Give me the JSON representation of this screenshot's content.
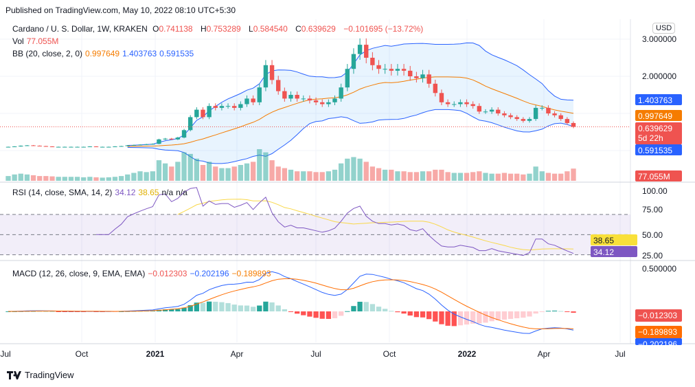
{
  "published": "Published on TradingView.com, May 10, 2022 08:10 UTC+5:30",
  "legend": {
    "symbol": "Cardano / U. S. Dollar, 1W, KRAKEN",
    "o_label": "O",
    "o": "0.741138",
    "h_label": "H",
    "h": "0.753289",
    "l_label": "L",
    "l": "0.584540",
    "c_label": "C",
    "c": "0.639629",
    "change": "−0.101695 (−13.72%)",
    "vol_label": "Vol",
    "vol": "77.055M",
    "bb_label": "BB (20, close, 2, 0)",
    "bb_basis": "0.997649",
    "bb_upper": "1.403763",
    "bb_lower": "0.591535",
    "rsi_label": "RSI (14, close, SMA, 14, 2)",
    "rsi": "34.12",
    "rsi_ma": "38.65",
    "rsi_na1": "n/a",
    "rsi_na2": "n/a",
    "macd_label": "MACD (12, 26, close, 9, EMA, EMA)",
    "macd_hist": "−0.012303",
    "macd": "−0.202196",
    "macd_signal": "−0.189893"
  },
  "currency": "USD",
  "price_scale": [
    "3.000000",
    "2.000000"
  ],
  "rsi_scale": [
    "100.00",
    "75.00",
    "50.00",
    "25.00"
  ],
  "macd_scale": [
    "0.500000"
  ],
  "badges": {
    "bb_upper": "1.403763",
    "bb_basis": "0.997649",
    "last": "0.639629",
    "countdown": "5d 22h",
    "bb_lower": "0.591535",
    "vol": "77.055M",
    "rsi_ma": "38.65",
    "rsi": "34.12",
    "macd_hist": "−0.012303",
    "macd_signal": "−0.189893",
    "macd": "−0.202196"
  },
  "time_axis": [
    "Jul",
    "Oct",
    "2021",
    "Apr",
    "Jul",
    "Oct",
    "2022",
    "Apr",
    "Jul"
  ],
  "footer": "TradingView",
  "colors": {
    "up": "#26a69a",
    "down": "#ef5350",
    "bb_basis": "#f57c00",
    "bb_band": "#2962ff",
    "rsi": "#7e57c2",
    "rsi_ma": "#f9d849",
    "macd": "#2962ff",
    "signal": "#ff6d00"
  },
  "chart_data": {
    "type": "candlestick",
    "closes": [
      0.1,
      0.11,
      0.13,
      0.14,
      0.13,
      0.12,
      0.11,
      0.1,
      0.1,
      0.1,
      0.1,
      0.1,
      0.1,
      0.11,
      0.1,
      0.1,
      0.1,
      0.11,
      0.12,
      0.14,
      0.15,
      0.16,
      0.17,
      0.18,
      0.3,
      0.32,
      0.3,
      0.35,
      0.55,
      0.9,
      1.1,
      0.9,
      1.2,
      1.15,
      1.2,
      1.2,
      1.15,
      1.25,
      1.4,
      1.3,
      1.7,
      2.3,
      1.9,
      1.6,
      1.4,
      1.5,
      1.4,
      1.4,
      1.35,
      1.3,
      1.25,
      1.3,
      1.4,
      1.7,
      2.2,
      2.6,
      2.85,
      2.5,
      2.3,
      2.2,
      2.2,
      2.15,
      2.2,
      2.15,
      2.0,
      1.95,
      2.05,
      1.8,
      1.55,
      1.3,
      1.25,
      1.25,
      1.3,
      1.25,
      1.2,
      1.05,
      1.05,
      1.1,
      1.0,
      0.95,
      0.9,
      0.85,
      0.8,
      0.85,
      1.15,
      1.15,
      1.0,
      0.95,
      0.85,
      0.741138,
      0.639629
    ],
    "volumes_m": [
      30,
      40,
      45,
      40,
      35,
      30,
      30,
      28,
      25,
      25,
      25,
      25,
      22,
      25,
      22,
      20,
      22,
      25,
      30,
      40,
      50,
      60,
      55,
      60,
      130,
      110,
      90,
      120,
      180,
      170,
      140,
      100,
      120,
      90,
      80,
      80,
      90,
      100,
      110,
      120,
      200,
      180,
      130,
      90,
      80,
      70,
      60,
      60,
      60,
      55,
      55,
      60,
      70,
      110,
      140,
      150,
      140,
      120,
      90,
      80,
      70,
      70,
      60,
      60,
      55,
      55,
      60,
      60,
      70,
      70,
      55,
      50,
      50,
      50,
      55,
      60,
      50,
      45,
      45,
      50,
      45,
      45,
      40,
      45,
      90,
      60,
      50,
      45,
      45,
      60,
      77.055
    ]
  }
}
